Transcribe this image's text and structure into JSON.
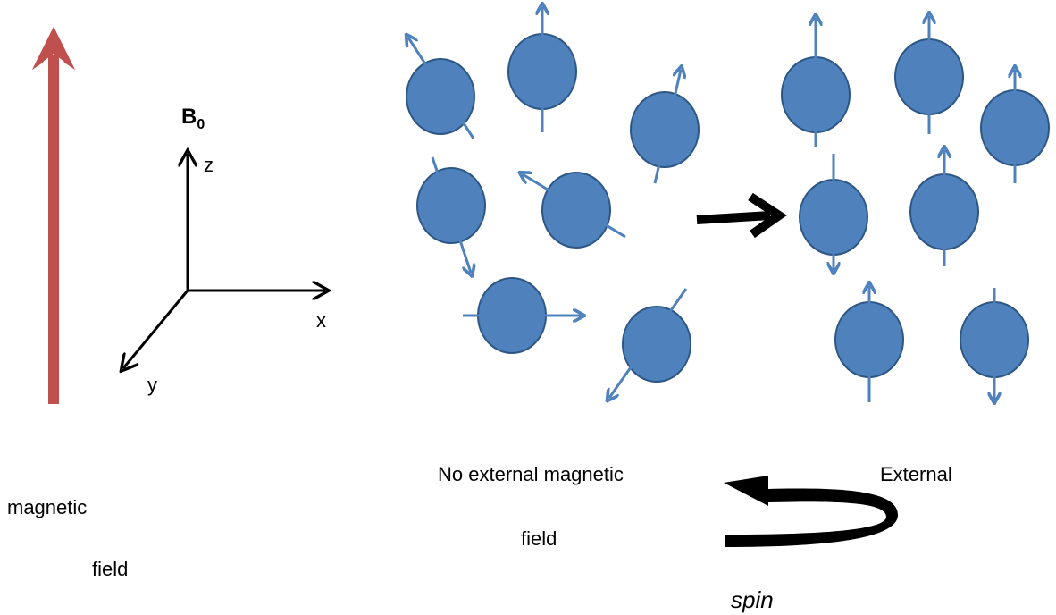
{
  "field_symbol": {
    "letter": "B",
    "subscript": "0"
  },
  "axes": {
    "z": "z",
    "x": "x",
    "y": "y"
  },
  "left_caption": [
    "magnetic",
    "field"
  ],
  "middle_caption": [
    "No external magnetic",
    "field"
  ],
  "right_caption": "External",
  "rotation_caption": "spin"
}
